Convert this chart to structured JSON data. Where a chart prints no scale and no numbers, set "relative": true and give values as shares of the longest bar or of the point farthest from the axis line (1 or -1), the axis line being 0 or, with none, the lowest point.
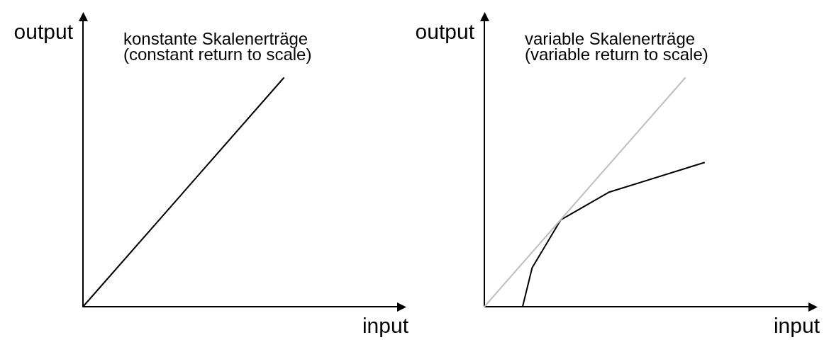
{
  "chart_data": [
    {
      "type": "line",
      "title": "konstante Skalenerträge",
      "subtitle": "(constant return to scale)",
      "xlabel": "input",
      "ylabel": "output",
      "relative": true,
      "categories": [
        null,
        null
      ],
      "series": [
        {
          "color": "#000000",
          "values": [
            0,
            1
          ]
        }
      ]
    },
    {
      "type": "line",
      "title": "variable Skalenerträge",
      "subtitle": "(variable return to scale)",
      "xlabel": "input",
      "ylabel": "output",
      "relative": true,
      "categories": [
        null,
        null,
        null,
        null,
        null,
        null,
        null,
        null,
        null,
        null,
        null,
        null,
        null,
        null,
        null,
        null,
        null,
        null,
        null,
        null,
        null,
        null,
        null,
        null
      ],
      "series": [
        {
          "color": "#bfbfbf",
          "values": [
            0,
            null,
            null,
            null,
            null,
            null,
            null,
            null,
            null,
            null,
            null,
            null,
            null,
            null,
            null,
            null,
            null,
            null,
            null,
            null,
            null,
            1,
            null,
            null
          ]
        },
        {
          "color": "#000000",
          "values": [
            null,
            null,
            null,
            null,
            0,
            0.17,
            null,
            null,
            0.38,
            null,
            null,
            null,
            null,
            0.5,
            null,
            null,
            null,
            null,
            null,
            null,
            null,
            null,
            null,
            0.63
          ]
        }
      ]
    }
  ]
}
